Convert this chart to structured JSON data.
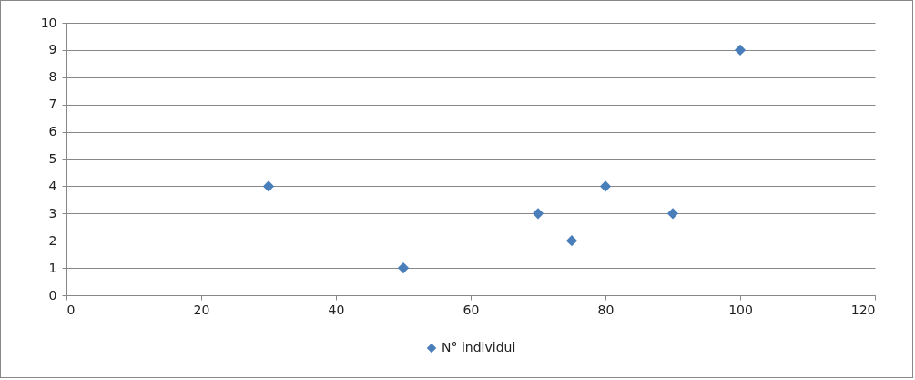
{
  "chart_data": {
    "type": "scatter",
    "x": [
      30,
      50,
      70,
      75,
      80,
      90,
      100
    ],
    "series": [
      {
        "name": "N° individui",
        "color": "#4a7ebb",
        "values": [
          4,
          1,
          3,
          2,
          4,
          3,
          9
        ]
      }
    ],
    "xlim": [
      0,
      120
    ],
    "xticks": [
      0,
      20,
      40,
      60,
      80,
      100,
      120
    ],
    "ylim": [
      0,
      10
    ],
    "yticks": [
      0,
      1,
      2,
      3,
      4,
      5,
      6,
      7,
      8,
      9,
      10
    ],
    "grid": "y",
    "legend": "bottom",
    "marker": "diamond"
  }
}
